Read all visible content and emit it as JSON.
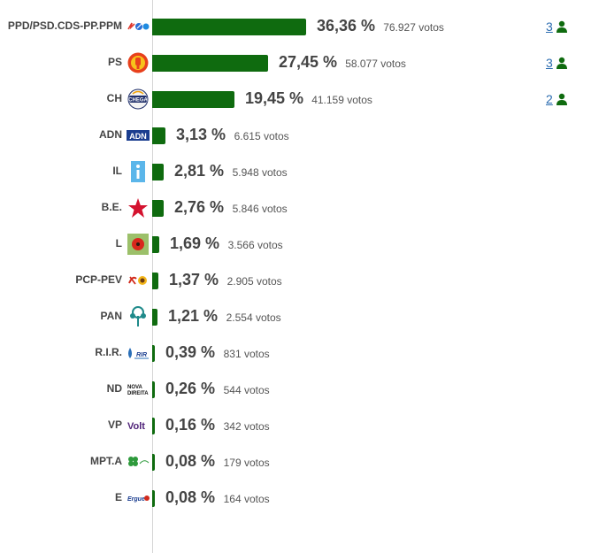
{
  "chart_data": {
    "type": "bar",
    "orientation": "horizontal",
    "categories": [
      "PPD/PSD.CDS-PP.PPM",
      "PS",
      "CH",
      "ADN",
      "IL",
      "B.E.",
      "L",
      "PCP-PEV",
      "PAN",
      "R.I.R.",
      "ND",
      "VP",
      "MPT.A",
      "E"
    ],
    "series": [
      {
        "values": [
          36.36,
          27.45,
          19.45,
          3.13,
          2.81,
          2.76,
          1.69,
          1.37,
          1.21,
          0.39,
          0.26,
          0.16,
          0.08,
          0.08
        ]
      }
    ],
    "bar_color": "#0f6b0f",
    "grid": false,
    "legend": "none",
    "title": "",
    "xlabel": "",
    "ylabel": ""
  },
  "rows": [
    {
      "party": "PPD/PSD.CDS-PP.PPM",
      "logo": "ad-coalition-logo",
      "pct": 36.36,
      "pct_label": "36,36 %",
      "votes_label": "76.927 votos",
      "seats": "3"
    },
    {
      "party": "PS",
      "logo": "ps-fist-rose-logo",
      "pct": 27.45,
      "pct_label": "27,45 %",
      "votes_label": "58.077 votos",
      "seats": "3"
    },
    {
      "party": "CH",
      "logo": "chega-logo",
      "pct": 19.45,
      "pct_label": "19,45 %",
      "votes_label": "41.159 votos",
      "seats": "2"
    },
    {
      "party": "ADN",
      "logo": "adn-logo",
      "pct": 3.13,
      "pct_label": "3,13 %",
      "votes_label": "6.615 votos",
      "seats": ""
    },
    {
      "party": "IL",
      "logo": "il-logo",
      "pct": 2.81,
      "pct_label": "2,81 %",
      "votes_label": "5.948 votos",
      "seats": ""
    },
    {
      "party": "B.E.",
      "logo": "be-star-logo",
      "pct": 2.76,
      "pct_label": "2,76 %",
      "votes_label": "5.846 votos",
      "seats": ""
    },
    {
      "party": "L",
      "logo": "livre-poppy-logo",
      "pct": 1.69,
      "pct_label": "1,69 %",
      "votes_label": "3.566 votos",
      "seats": ""
    },
    {
      "party": "PCP-PEV",
      "logo": "cdu-logo",
      "pct": 1.37,
      "pct_label": "1,37 %",
      "votes_label": "2.905 votos",
      "seats": ""
    },
    {
      "party": "PAN",
      "logo": "pan-tree-logo",
      "pct": 1.21,
      "pct_label": "1,21 %",
      "votes_label": "2.554 votos",
      "seats": ""
    },
    {
      "party": "R.I.R.",
      "logo": "rir-logo",
      "pct": 0.39,
      "pct_label": "0,39 %",
      "votes_label": "831 votos",
      "seats": ""
    },
    {
      "party": "ND",
      "logo": "nova-direita-logo",
      "pct": 0.26,
      "pct_label": "0,26 %",
      "votes_label": "544 votos",
      "seats": ""
    },
    {
      "party": "VP",
      "logo": "volt-logo",
      "pct": 0.16,
      "pct_label": "0,16 %",
      "votes_label": "342 votos",
      "seats": ""
    },
    {
      "party": "MPT.A",
      "logo": "mpt-clover-logo",
      "pct": 0.08,
      "pct_label": "0,08 %",
      "votes_label": "179 votos",
      "seats": ""
    },
    {
      "party": "E",
      "logo": "ergue-te-logo",
      "pct": 0.08,
      "pct_label": "0,08 %",
      "votes_label": "164 votos",
      "seats": ""
    }
  ],
  "seat_icon": "person-icon",
  "seat_link_color": "#2b6cb0",
  "seat_icon_color": "#0f6b0f",
  "text_color": "#444444"
}
